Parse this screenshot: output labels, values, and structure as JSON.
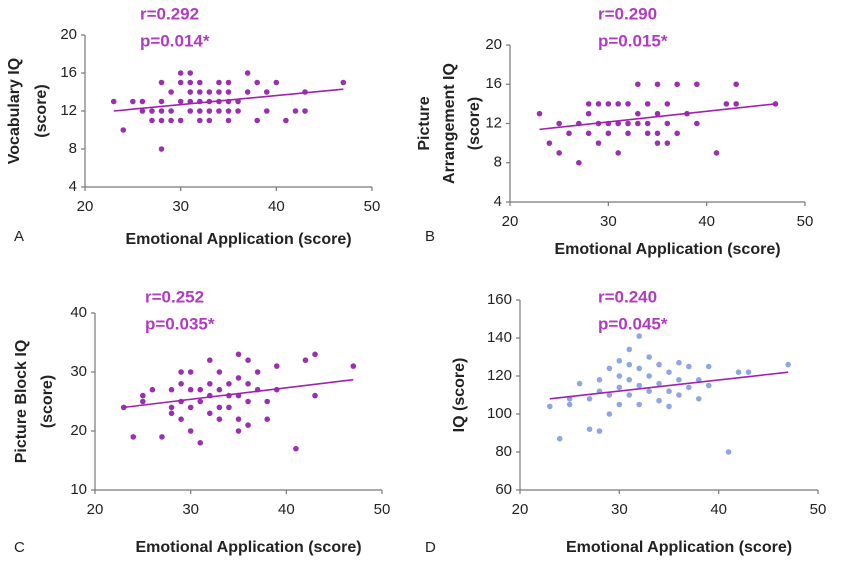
{
  "chart_data": [
    {
      "type": "scatter",
      "panel": "A",
      "xlabel": "Emotional Application (score)",
      "ylabel": [
        "Vocabulary IQ",
        "(score)"
      ],
      "annotations": [
        "r=0.292",
        "p=0.014*"
      ],
      "color": "#9a2fb0",
      "line_color": "#a020b0",
      "xlim": [
        20,
        50
      ],
      "xticks": [
        20,
        30,
        40,
        50
      ],
      "ylim": [
        4,
        20
      ],
      "yticks": [
        4,
        8,
        12,
        16,
        20
      ],
      "x": [
        23,
        24,
        25,
        26,
        26,
        27,
        27,
        28,
        28,
        28,
        28,
        28,
        29,
        29,
        29,
        30,
        30,
        30,
        30,
        31,
        31,
        31,
        31,
        31,
        32,
        32,
        32,
        32,
        32,
        33,
        33,
        33,
        33,
        34,
        34,
        34,
        34,
        35,
        35,
        35,
        35,
        35,
        36,
        36,
        37,
        37,
        38,
        38,
        39,
        39,
        40,
        41,
        42,
        43,
        43,
        47
      ],
      "y": [
        13,
        10,
        13,
        13,
        12,
        12,
        11,
        15,
        13,
        12,
        11,
        8,
        14,
        12,
        11,
        15,
        16,
        13,
        11,
        16,
        15,
        14,
        13,
        12,
        15,
        14,
        13,
        12,
        11,
        14,
        13,
        12,
        11,
        15,
        14,
        13,
        12,
        15,
        14,
        13,
        12,
        11,
        13,
        12,
        16,
        14,
        15,
        11,
        14,
        12,
        15,
        11,
        12,
        12,
        14,
        15
      ],
      "fit": {
        "x": [
          23,
          47
        ],
        "y": [
          12,
          14.3
        ]
      }
    },
    {
      "type": "scatter",
      "panel": "B",
      "xlabel": "Emotional Application (score)",
      "ylabel": [
        "Picture",
        "Arrangement IQ",
        "(score)"
      ],
      "annotations": [
        "r=0.290",
        "p=0.015*"
      ],
      "color": "#9a2fb0",
      "line_color": "#a020b0",
      "xlim": [
        20,
        50
      ],
      "xticks": [
        20,
        30,
        40,
        50
      ],
      "ylim": [
        4,
        20
      ],
      "yticks": [
        4,
        8,
        12,
        16,
        20
      ],
      "x": [
        23,
        24,
        25,
        25,
        26,
        27,
        27,
        28,
        28,
        28,
        29,
        29,
        29,
        30,
        30,
        30,
        31,
        31,
        31,
        32,
        32,
        32,
        33,
        33,
        33,
        34,
        34,
        34,
        35,
        35,
        35,
        35,
        36,
        36,
        36,
        37,
        37,
        38,
        39,
        39,
        41,
        42,
        43,
        43,
        47
      ],
      "y": [
        13,
        10,
        9,
        12,
        11,
        8,
        12,
        11,
        13,
        14,
        10,
        12,
        14,
        11,
        12,
        14,
        9,
        12,
        14,
        11,
        12,
        14,
        12,
        13,
        16,
        11,
        12,
        14,
        10,
        11,
        13,
        16,
        10,
        12,
        14,
        11,
        16,
        13,
        16,
        12,
        9,
        14,
        16,
        14,
        14
      ],
      "fit": {
        "x": [
          23,
          47
        ],
        "y": [
          11.4,
          14
        ]
      }
    },
    {
      "type": "scatter",
      "panel": "C",
      "xlabel": "Emotional Application (score)",
      "ylabel": [
        "Picture Block IQ",
        "(score)"
      ],
      "annotations": [
        "r=0.252",
        "p=0.035*"
      ],
      "color": "#9a2fb0",
      "line_color": "#a020b0",
      "xlim": [
        20,
        50
      ],
      "xticks": [
        20,
        30,
        40,
        50
      ],
      "ylim": [
        10,
        40
      ],
      "yticks": [
        10,
        20,
        30,
        40
      ],
      "x": [
        23,
        24,
        25,
        25,
        26,
        27,
        28,
        28,
        28,
        29,
        29,
        29,
        29,
        30,
        30,
        30,
        30,
        31,
        31,
        31,
        32,
        32,
        32,
        32,
        33,
        33,
        33,
        33,
        34,
        34,
        34,
        35,
        35,
        35,
        35,
        35,
        36,
        36,
        36,
        36,
        37,
        37,
        38,
        38,
        39,
        39,
        41,
        42,
        43,
        43,
        47
      ],
      "y": [
        24,
        19,
        26,
        25,
        27,
        19,
        24,
        23,
        27,
        30,
        28,
        25,
        22,
        30,
        27,
        24,
        20,
        18,
        27,
        25,
        32,
        28,
        26,
        23,
        30,
        27,
        24,
        22,
        28,
        26,
        24,
        33,
        29,
        26,
        22,
        20,
        32,
        28,
        25,
        21,
        30,
        27,
        25,
        22,
        31,
        27,
        17,
        32,
        33,
        26,
        31
      ],
      "fit": {
        "x": [
          23,
          47
        ],
        "y": [
          24,
          28.7
        ]
      }
    },
    {
      "type": "scatter",
      "panel": "D",
      "xlabel": "Emotional Application (score)",
      "ylabel": [
        "IQ (score)"
      ],
      "annotations": [
        "r=0.240",
        "p=0.045*"
      ],
      "color": "#8ea6e2",
      "line_color": "#a020b0",
      "xlim": [
        20,
        50
      ],
      "xticks": [
        20,
        30,
        40,
        50
      ],
      "ylim": [
        60,
        160
      ],
      "yticks": [
        60,
        80,
        100,
        120,
        140,
        160
      ],
      "x": [
        23,
        24,
        25,
        25,
        26,
        27,
        27,
        28,
        28,
        28,
        29,
        29,
        29,
        30,
        30,
        30,
        30,
        31,
        31,
        31,
        31,
        32,
        32,
        32,
        32,
        33,
        33,
        33,
        34,
        34,
        34,
        35,
        35,
        35,
        36,
        36,
        36,
        37,
        37,
        38,
        38,
        39,
        39,
        41,
        42,
        43,
        47
      ],
      "y": [
        104,
        87,
        108,
        105,
        116,
        92,
        108,
        91,
        118,
        112,
        124,
        110,
        100,
        128,
        120,
        114,
        105,
        134,
        126,
        118,
        110,
        141,
        124,
        115,
        105,
        130,
        120,
        112,
        126,
        116,
        107,
        122,
        112,
        104,
        127,
        118,
        110,
        125,
        114,
        118,
        108,
        125,
        115,
        80,
        122,
        122,
        126
      ],
      "fit": {
        "x": [
          23,
          47
        ],
        "y": [
          108,
          122
        ]
      }
    }
  ]
}
